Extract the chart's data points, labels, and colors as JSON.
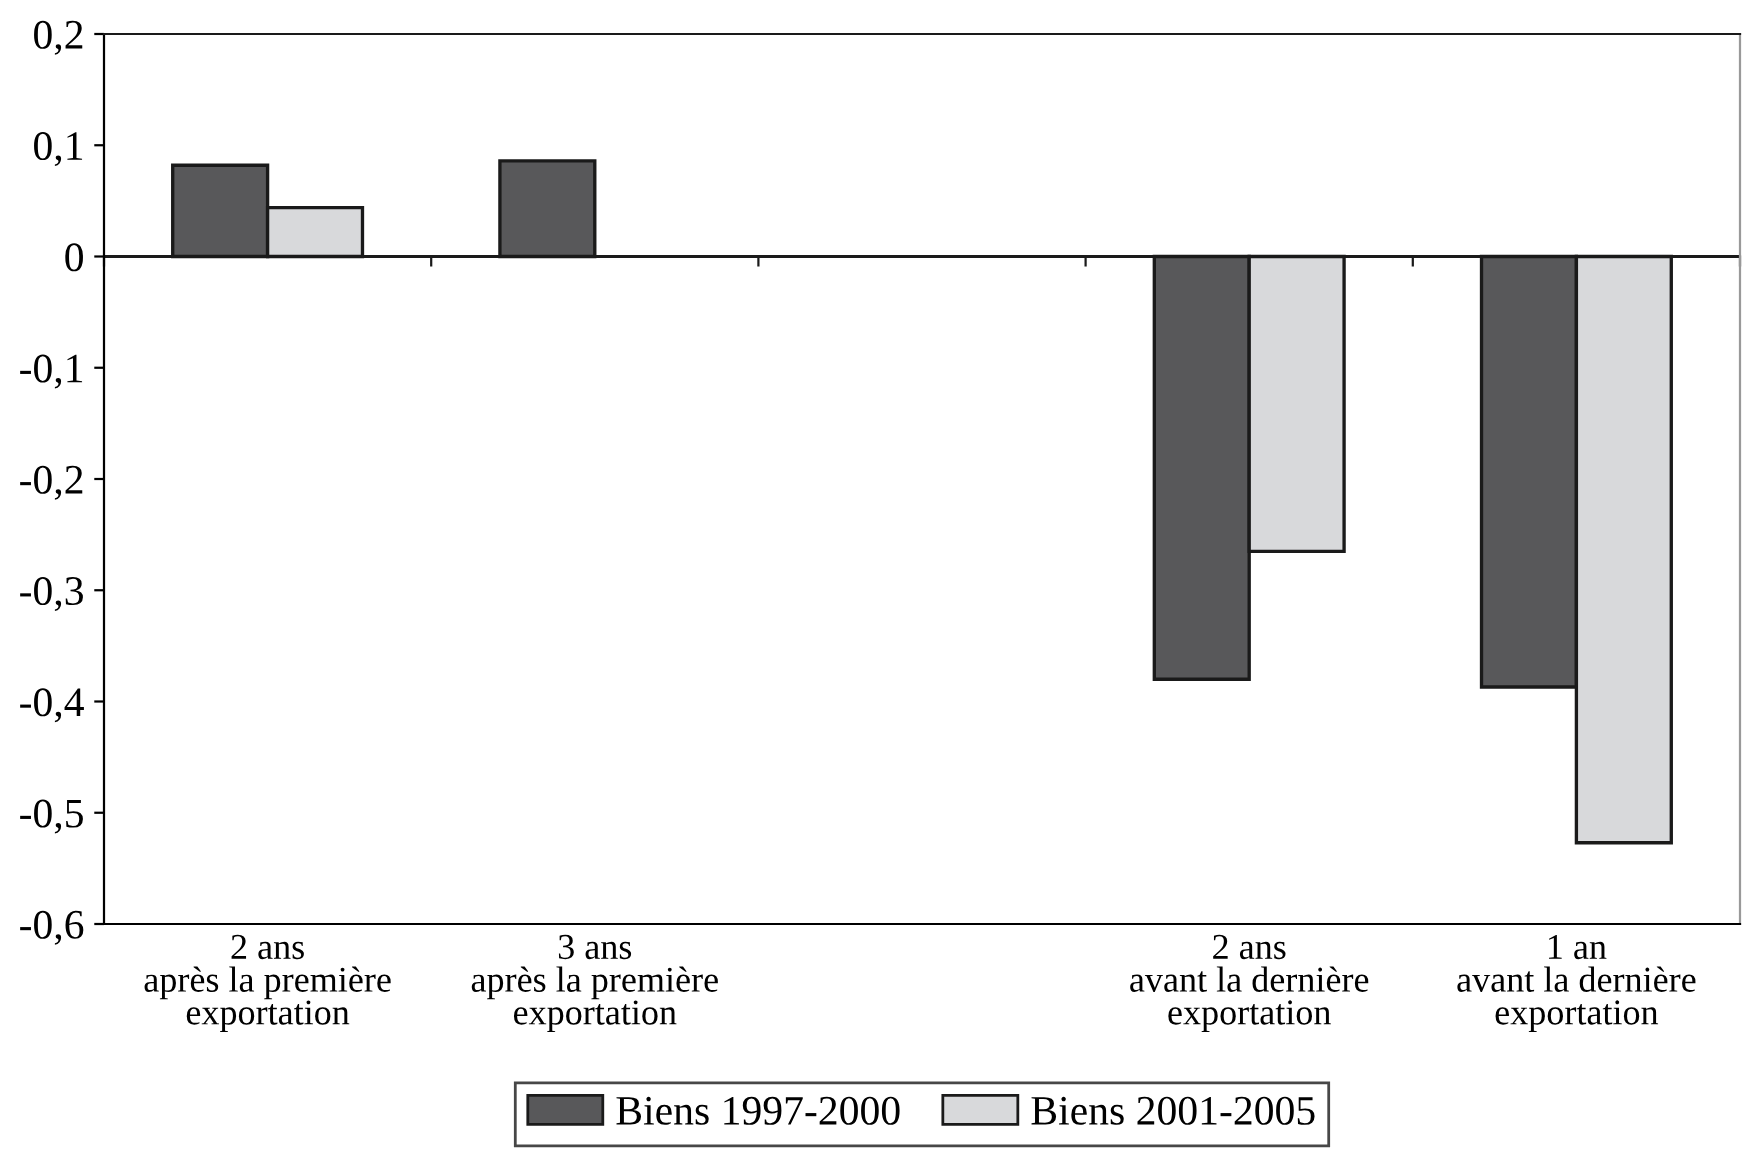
{
  "chart_data": {
    "type": "bar",
    "categories": [
      "2 ans\naprès la première\nexportation",
      "3 ans\naprès la première\nexportation",
      null,
      "2 ans\navant la dernière\nexportation",
      "1 an\navant la dernière\nexportation"
    ],
    "series": [
      {
        "name": "Biens 1997-2000",
        "color": "#58585a",
        "values": [
          0.082,
          0.086,
          null,
          -0.38,
          -0.387
        ]
      },
      {
        "name": "Biens 2001-2005",
        "color": "#d8d9db",
        "values": [
          0.044,
          null,
          null,
          -0.265,
          -0.527
        ]
      }
    ],
    "ylim": [
      -0.6,
      0.2
    ],
    "yticks": [
      {
        "value": -0.6,
        "label": "-0,6"
      },
      {
        "value": -0.5,
        "label": "-0,5"
      },
      {
        "value": -0.4,
        "label": "-0,4"
      },
      {
        "value": -0.3,
        "label": "-0,3"
      },
      {
        "value": -0.2,
        "label": "-0,2"
      },
      {
        "value": -0.1,
        "label": "-0,1"
      },
      {
        "value": 0,
        "label": "0"
      },
      {
        "value": 0.1,
        "label": "0,1"
      },
      {
        "value": 0.2,
        "label": "0,2"
      }
    ],
    "legend": "bottom"
  }
}
